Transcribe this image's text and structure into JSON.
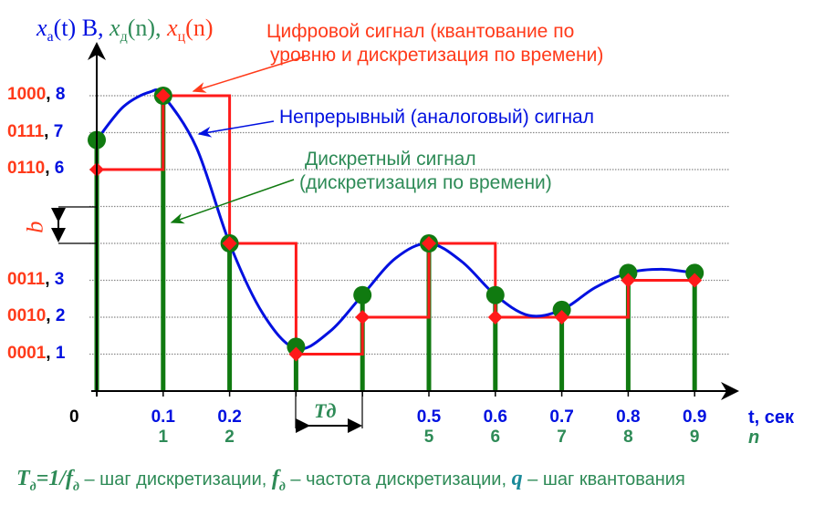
{
  "title": {
    "xa": "x",
    "xa_sub": "а",
    "xa_arg": "(t) В,",
    "xd": "x",
    "xd_sub": "д",
    "xd_arg": "(n),",
    "xc": "x",
    "xc_sub": "ц",
    "xc_arg": "(n)"
  },
  "annotations": {
    "digital": [
      "Цифровой сигнал (квантование по",
      "уровню и дискретизация по времени)"
    ],
    "analog": "Непрерывный (аналоговый) сигнал",
    "discrete": [
      "Дискретный сигнал",
      "(дискретизация по времени)"
    ]
  },
  "y_labels": [
    {
      "code": "1000",
      "level": "8"
    },
    {
      "code": "0111",
      "level": "7"
    },
    {
      "code": "0110",
      "level": "6"
    },
    {
      "code": "0011",
      "level": "3"
    },
    {
      "code": "0010",
      "level": "2"
    },
    {
      "code": "0001",
      "level": "1"
    }
  ],
  "q_label": "q",
  "td_label": "Tд",
  "x_origin": "0",
  "x_ticks": [
    {
      "t": "0.1",
      "n": "1"
    },
    {
      "t": "0.2",
      "n": "2"
    },
    {
      "t": "0.5",
      "n": "5"
    },
    {
      "t": "0.6",
      "n": "6"
    },
    {
      "t": "0.7",
      "n": "7"
    },
    {
      "t": "0.8",
      "n": "8"
    },
    {
      "t": "0.9",
      "n": "9"
    }
  ],
  "x_axis_label": "t, сек",
  "n_axis_label": "n",
  "footer": {
    "td": "T",
    "td_sub": "д",
    "eq": "=1/",
    "f": "f",
    "f_sub": "д",
    "text1": " – шаг дискретизации, ",
    "f2": "f",
    "f2_sub": "д",
    "text2": " – частота дискретизации, ",
    "q": "q",
    "text3": " – шаг квантования"
  },
  "colors": {
    "analog": "#0010e0",
    "discrete": "#107a10",
    "digital": "#ff1a1a",
    "grid": "#888888"
  },
  "chart_data": {
    "type": "line",
    "x": [
      0,
      0.1,
      0.2,
      0.3,
      0.4,
      0.5,
      0.6,
      0.7,
      0.8,
      0.9
    ],
    "n": [
      0,
      1,
      2,
      3,
      4,
      5,
      6,
      7,
      8,
      9
    ],
    "ylim": [
      0,
      8
    ],
    "xlim": [
      0,
      0.95
    ],
    "grid": true,
    "series": [
      {
        "name": "xа(t)",
        "values": [
          6.8,
          8,
          4,
          1.2,
          2.6,
          4,
          2.6,
          2.2,
          3.2,
          3.2
        ]
      },
      {
        "name": "xд(n)",
        "values": [
          6.8,
          8,
          4,
          1.2,
          2.6,
          4,
          2.6,
          2.2,
          3.2,
          3.2
        ]
      },
      {
        "name": "xц(n)",
        "values": [
          6,
          8,
          4,
          1,
          2,
          4,
          2,
          2,
          3,
          3
        ]
      }
    ],
    "analog_curve": [
      [
        0,
        6.8
      ],
      [
        0.04,
        7.7
      ],
      [
        0.08,
        8.1
      ],
      [
        0.1,
        8
      ],
      [
        0.15,
        6.6
      ],
      [
        0.2,
        4
      ],
      [
        0.25,
        2.1
      ],
      [
        0.3,
        1.15
      ],
      [
        0.35,
        1.6
      ],
      [
        0.4,
        2.6
      ],
      [
        0.45,
        3.6
      ],
      [
        0.5,
        4
      ],
      [
        0.55,
        3.5
      ],
      [
        0.6,
        2.6
      ],
      [
        0.65,
        2.05
      ],
      [
        0.7,
        2.2
      ],
      [
        0.75,
        2.8
      ],
      [
        0.8,
        3.2
      ],
      [
        0.85,
        3.3
      ],
      [
        0.9,
        3.2
      ]
    ]
  }
}
